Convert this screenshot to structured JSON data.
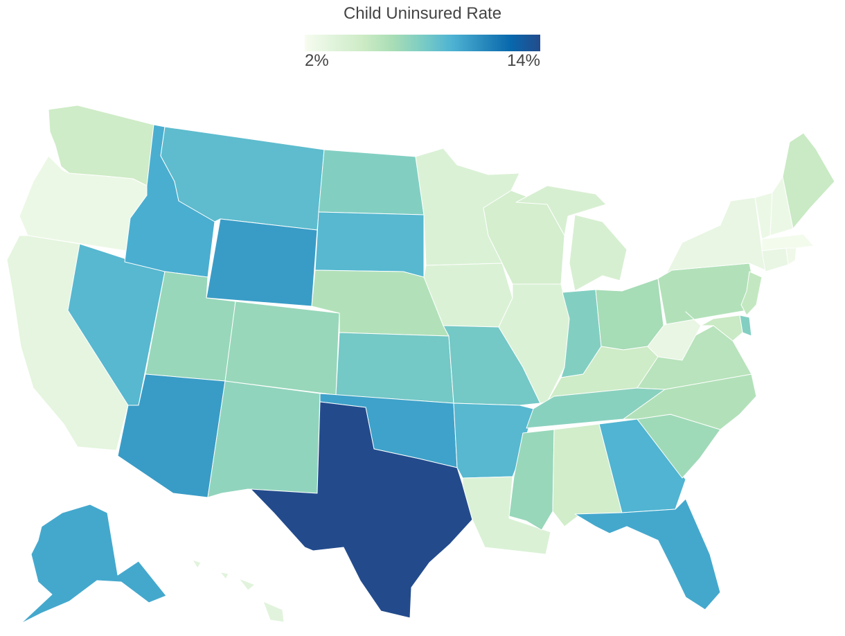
{
  "title": "Child Uninsured Rate",
  "legend": {
    "min_label": "2%",
    "max_label": "14%",
    "min_value": 2,
    "max_value": 14,
    "gradient": [
      "#f7fcf0",
      "#e0f3db",
      "#ccebc5",
      "#a8ddb5",
      "#7bccc4",
      "#4eb3d3",
      "#2b8cbe",
      "#0868ac",
      "#234b8c"
    ]
  },
  "states": {
    "WA": {
      "level": 0.24
    },
    "OR": {
      "level": 0.06
    },
    "CA": {
      "level": 0.1
    },
    "ID": {
      "level": 0.64
    },
    "NV": {
      "level": 0.6
    },
    "MT": {
      "level": 0.58
    },
    "WY": {
      "level": 0.7
    },
    "UT": {
      "level": 0.42
    },
    "AZ": {
      "level": 0.7
    },
    "CO": {
      "level": 0.42
    },
    "NM": {
      "level": 0.44
    },
    "ND": {
      "level": 0.48
    },
    "SD": {
      "level": 0.6
    },
    "NE": {
      "level": 0.34
    },
    "KS": {
      "level": 0.52
    },
    "OK": {
      "level": 0.68
    },
    "TX": {
      "level": 1.0
    },
    "MN": {
      "level": 0.16
    },
    "IA": {
      "level": 0.16
    },
    "MO": {
      "level": 0.52
    },
    "AR": {
      "level": 0.6
    },
    "LA": {
      "level": 0.16
    },
    "WI": {
      "level": 0.2
    },
    "IL": {
      "level": 0.16
    },
    "MI": {
      "level": 0.18
    },
    "IN": {
      "level": 0.48
    },
    "OH": {
      "level": 0.38
    },
    "KY": {
      "level": 0.24
    },
    "TN": {
      "level": 0.46
    },
    "MS": {
      "level": 0.42
    },
    "AL": {
      "level": 0.22
    },
    "GA": {
      "level": 0.62
    },
    "FL": {
      "level": 0.66
    },
    "SC": {
      "level": 0.4
    },
    "NC": {
      "level": 0.34
    },
    "VA": {
      "level": 0.32
    },
    "WV": {
      "level": 0.08
    },
    "PA": {
      "level": 0.34
    },
    "NY": {
      "level": 0.08
    },
    "ME": {
      "level": 0.26
    },
    "NH": {
      "level": 0.06
    },
    "VT": {
      "level": 0.06
    },
    "MA": {
      "level": 0.02
    },
    "CT": {
      "level": 0.08
    },
    "RI": {
      "level": 0.04
    },
    "NJ": {
      "level": 0.28
    },
    "DE": {
      "level": 0.48
    },
    "MD": {
      "level": 0.26
    },
    "AK": {
      "level": 0.66
    },
    "HI": {
      "level": 0.12
    }
  }
}
